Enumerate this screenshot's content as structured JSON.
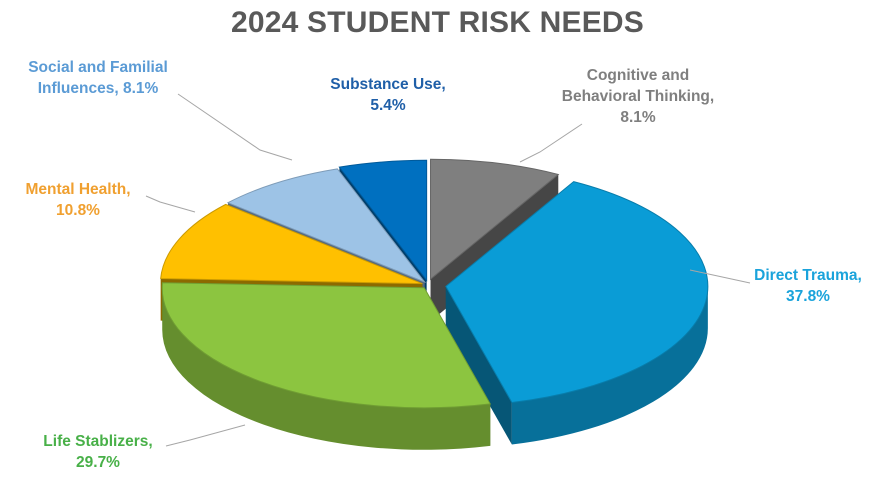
{
  "chart_data": {
    "type": "pie",
    "variant": "3d-exploded",
    "title": "2024 STUDENT RISK NEEDS",
    "slices": [
      {
        "label_line1": "Cognitive and",
        "label_line2": "Behavioral Thinking,",
        "label_line3": "8.1%",
        "category": "Cognitive and Behavioral Thinking",
        "value": 8.1,
        "color": "#7f7f7f"
      },
      {
        "label_line1": "Direct Trauma,",
        "label_line2": "37.8%",
        "category": "Direct Trauma",
        "value": 37.8,
        "color": "#0a9cd6"
      },
      {
        "label_line1": "Life Stablizers,",
        "label_line2": "29.7%",
        "category": "Life Stablizers",
        "value": 29.7,
        "color": "#8cc540"
      },
      {
        "label_line1": "Mental Health,",
        "label_line2": "10.8%",
        "category": "Mental Health",
        "value": 10.8,
        "color": "#ffc000"
      },
      {
        "label_line1": "Social and Familial",
        "label_line2": "Influences, 8.1%",
        "category": "Social and Familial Influences",
        "value": 8.1,
        "color": "#9dc3e6"
      },
      {
        "label_line1": "Substance Use,",
        "label_line2": "5.4%",
        "category": "Substance Use",
        "value": 5.4,
        "color": "#0070c0"
      }
    ],
    "label_colors": {
      "Cognitive and Behavioral Thinking": "#7f7f7f",
      "Direct Trauma": "#1aa3db",
      "Life Stablizers": "#48b048",
      "Mental Health": "#f0a030",
      "Social and Familial Influences": "#5b9bd5",
      "Substance Use": "#1f5fa8"
    },
    "legend": "none"
  }
}
